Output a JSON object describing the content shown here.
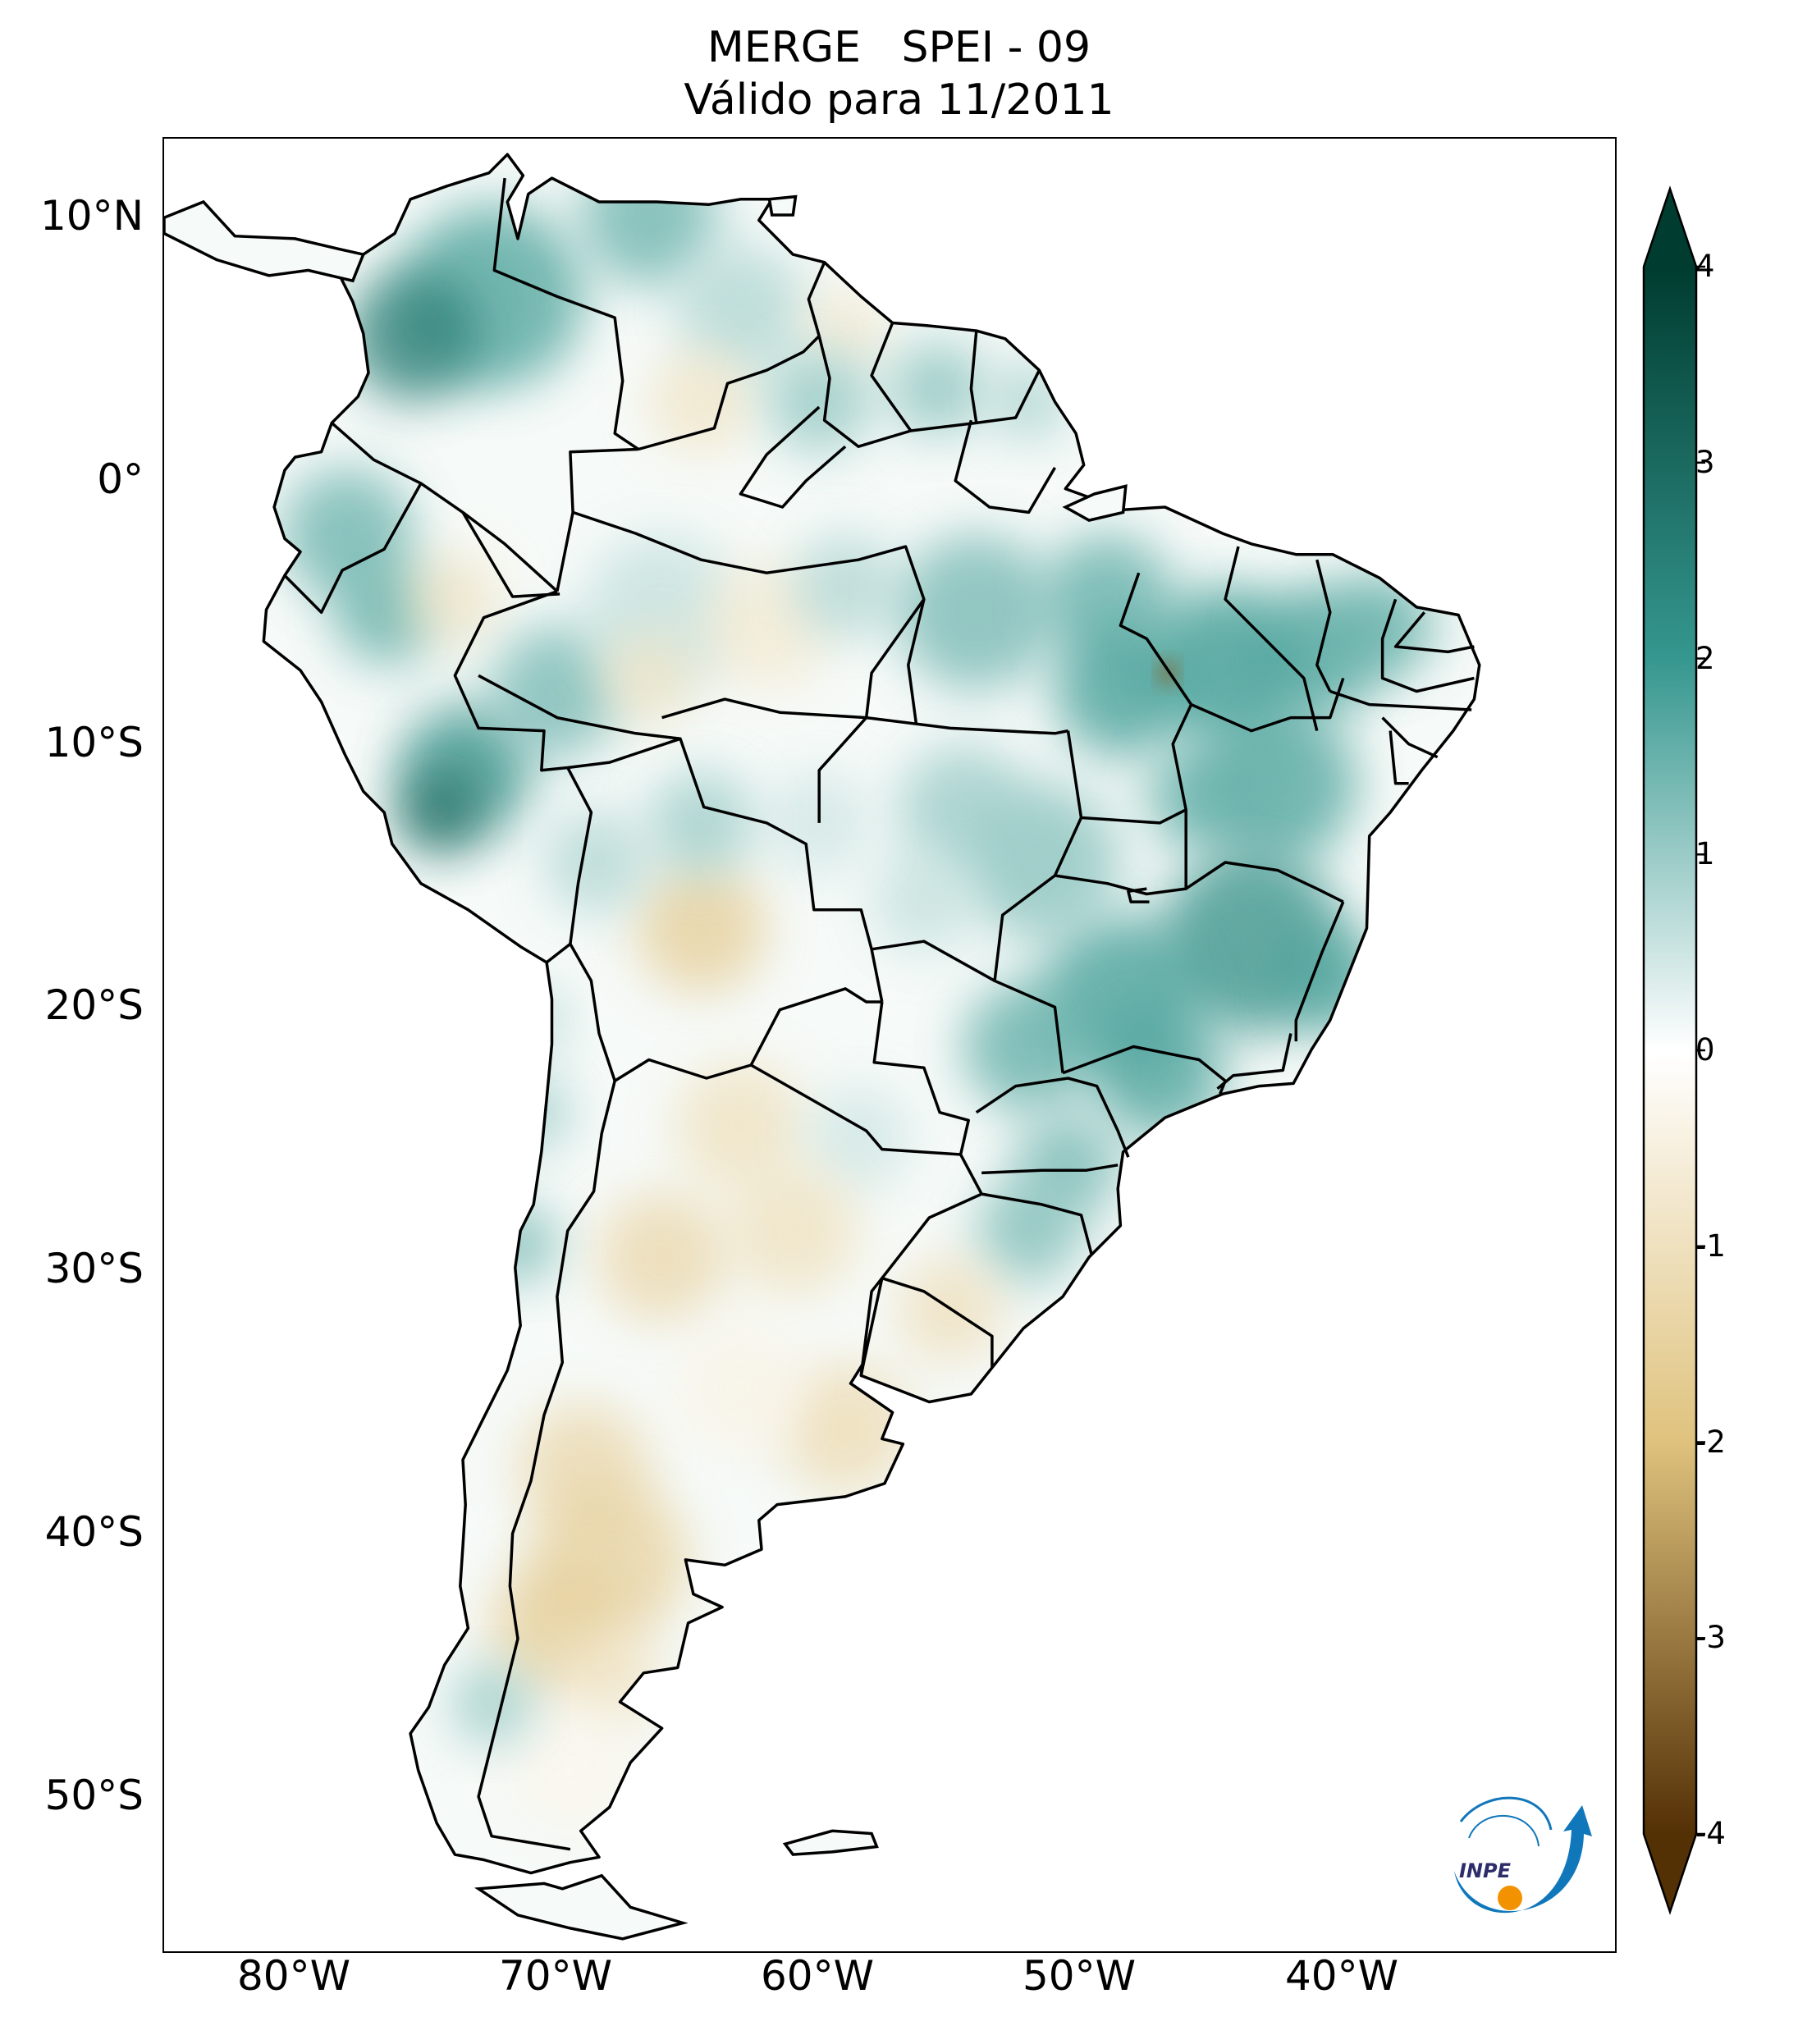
{
  "title": {
    "line1": "MERGE   SPEI - 09",
    "line2": "Válido para 11/2011"
  },
  "map": {
    "lat_ticks": [
      "10°N",
      "0°",
      "10°S",
      "20°S",
      "30°S",
      "40°S",
      "50°S"
    ],
    "lon_ticks": [
      "80°W",
      "70°W",
      "60°W",
      "50°W",
      "40°W"
    ],
    "lon_range": [
      -85,
      -29.5
    ],
    "lat_range": [
      -56,
      13
    ]
  },
  "colorbar": {
    "ticks": [
      "4",
      "3",
      "2",
      "1",
      "0",
      "-1",
      "-2",
      "-3",
      "-4"
    ],
    "range": [
      -4,
      4
    ],
    "colors": {
      "max": "#003c30",
      "high": "#35978f",
      "mid": "#ffffff",
      "low": "#dfc27d",
      "min": "#543005"
    }
  },
  "logo": {
    "text": "INPE",
    "colors": {
      "arrow": "#1177bb",
      "dot": "#f39200"
    }
  }
}
